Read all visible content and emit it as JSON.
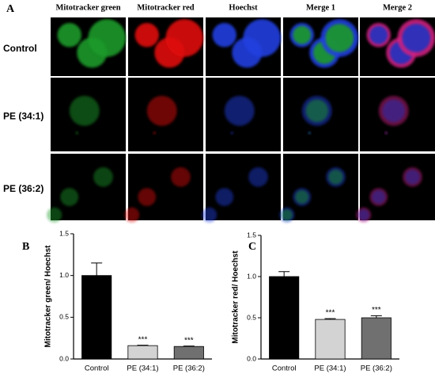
{
  "panel_a": {
    "label": "A",
    "columns": [
      "Mitotracker green",
      "Mitotracker red",
      "Hoechst",
      "Merge 1",
      "Merge 2"
    ],
    "rows": [
      "Control",
      "PE (34:1)",
      "PE (36:2)"
    ]
  },
  "chart_data": [
    {
      "type": "bar",
      "panel_label": "B",
      "y_label": "Mitotracker green/ Hoechst",
      "categories": [
        "Control",
        "PE (34:1)",
        "PE (36:2)"
      ],
      "values": [
        1.0,
        0.16,
        0.15
      ],
      "errors": [
        0.15,
        0.005,
        0.005
      ],
      "significance": [
        null,
        "***",
        "***"
      ],
      "colors": [
        "#000000",
        "#d3d3d3",
        "#707070"
      ],
      "ylim": [
        0,
        1.5
      ],
      "yticks": [
        {
          "value": 0,
          "label": "0.0"
        },
        0.5,
        {
          "value": 1,
          "label": "1.0"
        },
        1.5
      ]
    },
    {
      "type": "bar",
      "panel_label": "C",
      "y_label": "Mitotracker red/ Hoechst",
      "categories": [
        "Control",
        "PE (34:1)",
        "PE (36:2)"
      ],
      "values": [
        1.0,
        0.48,
        0.5
      ],
      "errors": [
        0.06,
        0.01,
        0.025
      ],
      "significance": [
        null,
        "***",
        "***"
      ],
      "colors": [
        "#000000",
        "#d3d3d3",
        "#707070"
      ],
      "ylim": [
        0,
        1.5
      ],
      "yticks": [
        {
          "value": 0,
          "label": "0.0"
        },
        0.5,
        {
          "value": 1,
          "label": "1.0"
        },
        1.5
      ]
    }
  ]
}
